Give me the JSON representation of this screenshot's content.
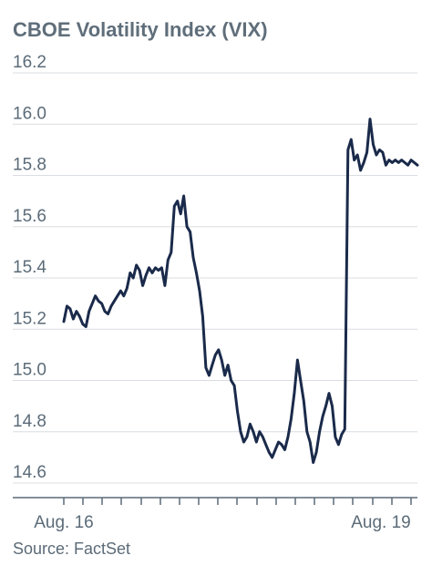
{
  "chart_data": {
    "type": "line",
    "title": "CBOE Volatility Index (VIX)",
    "source": "Source: FactSet",
    "xlabel": "",
    "ylabel": "",
    "ylim": [
      14.6,
      16.2
    ],
    "yticks": [
      14.6,
      14.8,
      15.0,
      15.2,
      15.4,
      15.6,
      15.8,
      16.0,
      16.2
    ],
    "x_tick_labels": [
      {
        "label": "Aug. 16",
        "index": 0
      },
      {
        "label": "Aug. 19",
        "index": 3
      }
    ],
    "x_tick_count": 4,
    "grid": true,
    "color": "#1a2a4a",
    "series": [
      {
        "name": "",
        "x": [
          0,
          0.03,
          0.06,
          0.09,
          0.12,
          0.15,
          0.18,
          0.21,
          0.24,
          0.27,
          0.3,
          0.33,
          0.36,
          0.39,
          0.42,
          0.45,
          0.48,
          0.51,
          0.54,
          0.57,
          0.6,
          0.63,
          0.66,
          0.69,
          0.72,
          0.75,
          0.78,
          0.81,
          0.84,
          0.87,
          0.9,
          0.93,
          0.96,
          0.99,
          1.02,
          1.05,
          1.08,
          1.11,
          1.14,
          1.17,
          1.2,
          1.23,
          1.26,
          1.29,
          1.32,
          1.35,
          1.38,
          1.41,
          1.44,
          1.47,
          1.5,
          1.53,
          1.56,
          1.59,
          1.62,
          1.65,
          1.68,
          1.71,
          1.74,
          1.77,
          1.8,
          1.83,
          1.86,
          1.89,
          1.92,
          1.95,
          1.98,
          2.01,
          2.04,
          2.07,
          2.1,
          2.13,
          2.16,
          2.19,
          2.22,
          2.25,
          2.28,
          2.31,
          2.34,
          2.37,
          2.4,
          2.43,
          2.46,
          2.49,
          2.52,
          2.55,
          2.58,
          2.61,
          2.64,
          2.67,
          2.7,
          2.73,
          2.76,
          2.79,
          2.82,
          2.85,
          2.88,
          2.91,
          2.94,
          2.97,
          3.0,
          3.03,
          3.06,
          3.09,
          3.12,
          3.15,
          3.18,
          3.21,
          3.24,
          3.27,
          3.3,
          3.33,
          3.36
        ],
        "values": [
          15.23,
          15.29,
          15.28,
          15.24,
          15.27,
          15.25,
          15.22,
          15.21,
          15.27,
          15.3,
          15.33,
          15.31,
          15.3,
          15.27,
          15.26,
          15.29,
          15.31,
          15.33,
          15.35,
          15.33,
          15.36,
          15.42,
          15.4,
          15.45,
          15.43,
          15.37,
          15.41,
          15.44,
          15.42,
          15.44,
          15.43,
          15.44,
          15.37,
          15.47,
          15.5,
          15.68,
          15.7,
          15.65,
          15.72,
          15.6,
          15.58,
          15.48,
          15.42,
          15.35,
          15.25,
          15.05,
          15.02,
          15.06,
          15.1,
          15.12,
          15.08,
          15.02,
          15.06,
          15.0,
          14.98,
          14.88,
          14.8,
          14.76,
          14.78,
          14.83,
          14.8,
          14.76,
          14.8,
          14.78,
          14.75,
          14.72,
          14.7,
          14.73,
          14.76,
          14.75,
          14.73,
          14.78,
          14.85,
          14.95,
          15.08,
          15.0,
          14.92,
          14.8,
          14.76,
          14.68,
          14.72,
          14.8,
          14.86,
          14.9,
          14.95,
          14.9,
          14.78,
          14.75,
          14.79,
          14.81,
          15.9,
          15.94,
          15.86,
          15.88,
          15.82,
          15.85,
          15.89,
          16.02,
          15.92,
          15.88,
          15.9,
          15.89,
          15.84,
          15.86,
          15.85,
          15.86,
          15.85,
          15.86,
          15.85,
          15.84,
          15.86,
          15.85,
          15.84
        ]
      }
    ]
  }
}
